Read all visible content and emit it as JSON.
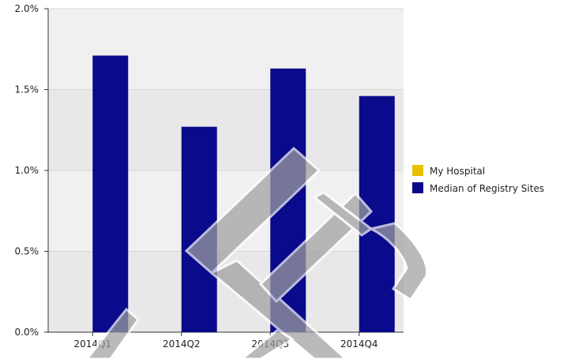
{
  "chart_data": {
    "type": "bar",
    "categories": [
      "2014Q1",
      "2014Q2",
      "2014Q3",
      "2014Q4"
    ],
    "series": [
      {
        "name": "My Hospital",
        "color": "#E8C000",
        "values": [
          null,
          null,
          null,
          null
        ]
      },
      {
        "name": "Median of Registry Sites",
        "color": "#0A0A8C",
        "values": [
          1.71,
          1.27,
          1.63,
          1.46
        ]
      }
    ],
    "ylim": [
      0,
      2.0
    ],
    "yticks": [
      {
        "value": 0,
        "label": "0.0%"
      },
      {
        "value": 0.5,
        "label": "0.5%"
      },
      {
        "value": 1.0,
        "label": "1.0%"
      },
      {
        "value": 1.5,
        "label": "1.5%"
      },
      {
        "value": 2.0,
        "label": "2.0%"
      }
    ],
    "title": "",
    "xlabel": "",
    "ylabel": "",
    "grid": true,
    "legend_position": "right",
    "band_colors": [
      "#E8E8E8",
      "#F0F0F0"
    ]
  }
}
